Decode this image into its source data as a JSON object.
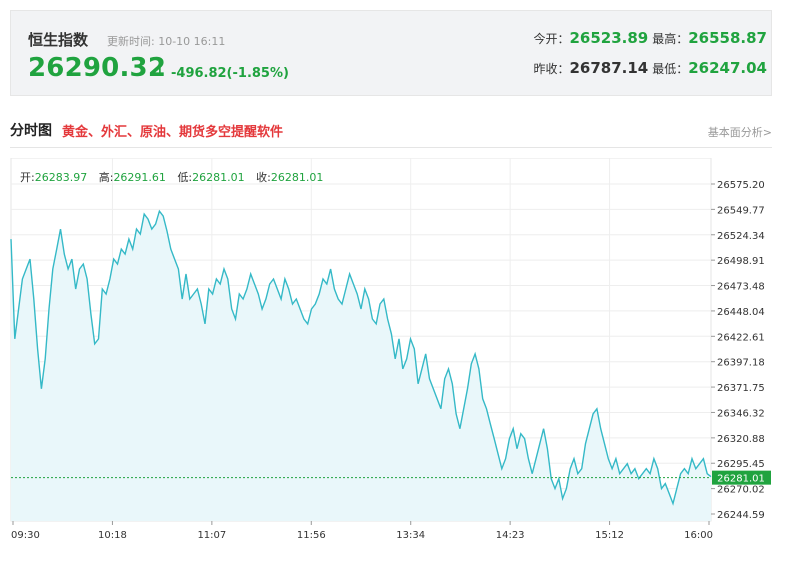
{
  "header": {
    "index_name": "恒生指数",
    "update_label": "更新时间:",
    "update_time": "10-10 16:11",
    "price": "26290.32",
    "arrow": "↓",
    "change": "-496.82(-1.85%)",
    "open_label": "今开：",
    "open": "26523.89",
    "high_label": "最高：",
    "high": "26558.87",
    "prev_close_label": "昨收：",
    "prev_close": "26787.14",
    "low_label": "最低：",
    "low": "26247.04"
  },
  "section": {
    "title": "分时图",
    "promo_link": "黄金、外汇、原油、期货多空提醒软件",
    "more_link": "基本面分析>"
  },
  "ohlc": {
    "open_label": "开:",
    "open": "26283.97",
    "high_label": "高:",
    "high": "26291.61",
    "low_label": "低:",
    "low": "26281.01",
    "close_label": "收:",
    "close": "26281.01"
  },
  "colors": {
    "up": "#e4393c",
    "down": "#20a33f",
    "line": "#35b9c7",
    "fill": "#e9f7fa",
    "current_tag": "#20a33f"
  },
  "chart_data": {
    "type": "area",
    "y_ticks": [
      "26575.20",
      "26549.77",
      "26524.34",
      "26498.91",
      "26473.48",
      "26448.04",
      "26422.61",
      "26397.18",
      "26371.75",
      "26346.32",
      "26320.88",
      "26295.45",
      "26270.02",
      "26244.59"
    ],
    "x_ticks": [
      "09:30",
      "10:18",
      "11:07",
      "11:56",
      "13:34",
      "14:23",
      "15:12",
      "16:00"
    ],
    "ylim": [
      26244.59,
      26575.2
    ],
    "current_value": "26281.01",
    "grid": true,
    "values": [
      26520,
      26420,
      26450,
      26480,
      26490,
      26500,
      26460,
      26410,
      26370,
      26400,
      26450,
      26490,
      26510,
      26530,
      26505,
      26490,
      26500,
      26470,
      26490,
      26495,
      26480,
      26445,
      26415,
      26420,
      26470,
      26465,
      26480,
      26500,
      26495,
      26510,
      26505,
      26520,
      26510,
      26530,
      26525,
      26545,
      26540,
      26530,
      26535,
      26548,
      26543,
      26528,
      26510,
      26500,
      26490,
      26460,
      26485,
      26460,
      26465,
      26470,
      26455,
      26435,
      26470,
      26465,
      26480,
      26475,
      26490,
      26480,
      26450,
      26440,
      26465,
      26460,
      26470,
      26485,
      26475,
      26465,
      26450,
      26460,
      26475,
      26480,
      26470,
      26460,
      26480,
      26470,
      26455,
      26460,
      26450,
      26440,
      26435,
      26450,
      26455,
      26465,
      26480,
      26475,
      26490,
      26470,
      26460,
      26455,
      26470,
      26485,
      26475,
      26465,
      26450,
      26470,
      26460,
      26440,
      26435,
      26455,
      26460,
      26440,
      26425,
      26400,
      26420,
      26390,
      26400,
      26420,
      26410,
      26375,
      26390,
      26405,
      26380,
      26370,
      26360,
      26350,
      26380,
      26390,
      26375,
      26345,
      26330,
      26350,
      26370,
      26395,
      26405,
      26390,
      26360,
      26350,
      26335,
      26320,
      26305,
      26290,
      26300,
      26320,
      26330,
      26310,
      26325,
      26320,
      26300,
      26285,
      26300,
      26315,
      26330,
      26310,
      26280,
      26270,
      26280,
      26260,
      26270,
      26290,
      26300,
      26285,
      26290,
      26315,
      26330,
      26345,
      26350,
      26330,
      26315,
      26300,
      26290,
      26300,
      26285,
      26290,
      26295,
      26285,
      26290,
      26280,
      26285,
      26290,
      26285,
      26300,
      26290,
      26270,
      26275,
      26265,
      26255,
      26270,
      26285,
      26290,
      26285,
      26300,
      26290,
      26295,
      26300,
      26285,
      26282
    ]
  }
}
